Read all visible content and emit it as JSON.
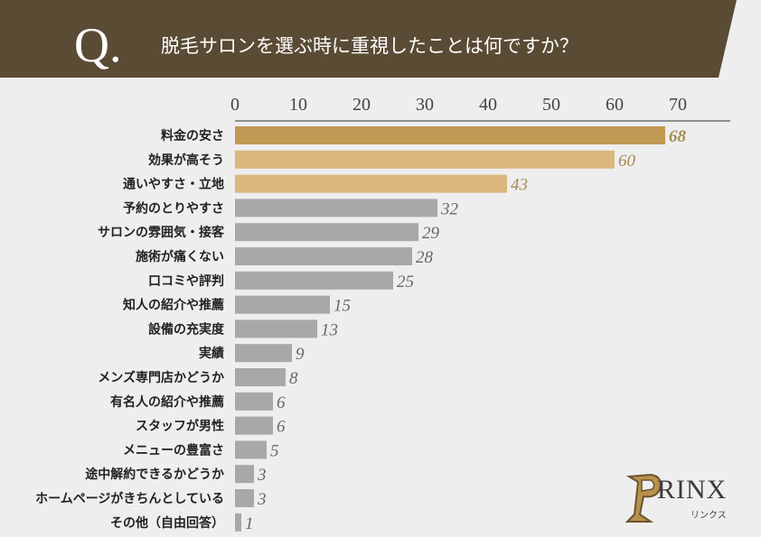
{
  "header": {
    "q_mark": "Q.",
    "question": "脱毛サロンを選ぶ時に重視したことは何ですか？"
  },
  "brand": {
    "name": "RINX",
    "sub": "リンクス"
  },
  "colors": {
    "header_bg": "#5a4b35",
    "header_text": "#ffffff",
    "highlight_dark": "#c09a55",
    "highlight_light": "#d9b77d",
    "bar_gray": "#a9a7a8",
    "value_gold": "#a88a52",
    "value_gray": "#666666"
  },
  "chart_data": {
    "type": "bar",
    "orientation": "horizontal",
    "title": "脱毛サロンを選ぶ時に重視したことは何ですか？",
    "xlim": [
      0,
      70
    ],
    "ticks": [
      "0",
      "10",
      "20",
      "30",
      "40",
      "50",
      "60",
      "70"
    ],
    "categories": [
      "料金の安さ",
      "効果が高そう",
      "通いやすさ・立地",
      "予約のとりやすさ",
      "サロンの雰囲気・接客",
      "施術が痛くない",
      "口コミや評判",
      "知人の紹介や推薦",
      "設備の充実度",
      "実績",
      "メンズ専門店かどうか",
      "有名人の紹介や推薦",
      "スタッフが男性",
      "メニューの豊富さ",
      "途中解約できるかどうか",
      "ホームページがきちんとしている",
      "その他（自由回答）"
    ],
    "values": [
      68,
      60,
      43,
      32,
      29,
      28,
      25,
      15,
      13,
      9,
      8,
      6,
      6,
      5,
      3,
      3,
      1
    ],
    "value_labels": [
      "68",
      "60",
      "43",
      "32",
      "29",
      "28",
      "25",
      "15",
      "13",
      "9",
      "8",
      "6",
      "6",
      "5",
      "3",
      "3",
      "1"
    ]
  }
}
